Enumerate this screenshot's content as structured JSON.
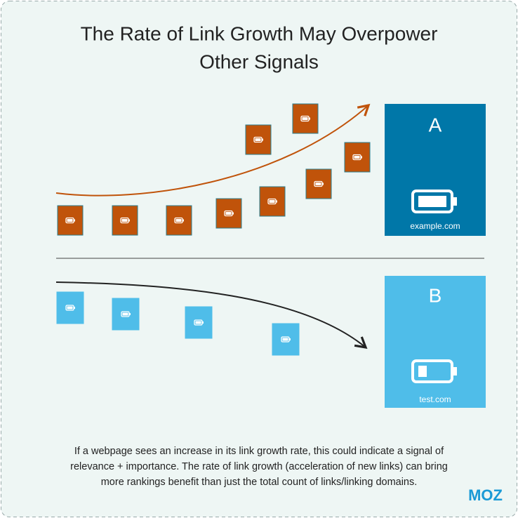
{
  "title": [
    "The Rate of Link Growth May Overpower",
    "Other Signals"
  ],
  "panels": [
    {
      "label": "A",
      "domain": "example.com"
    },
    {
      "label": "B",
      "domain": "test.com"
    }
  ],
  "caption": [
    "If a webpage sees an increase in its link growth rate, this could indicate a signal of",
    "relevance + importance. The rate of link growth (acceleration of new links) can bring",
    "more rankings benefit than just the total count of links/linking domains."
  ],
  "logo": "MOZ"
}
